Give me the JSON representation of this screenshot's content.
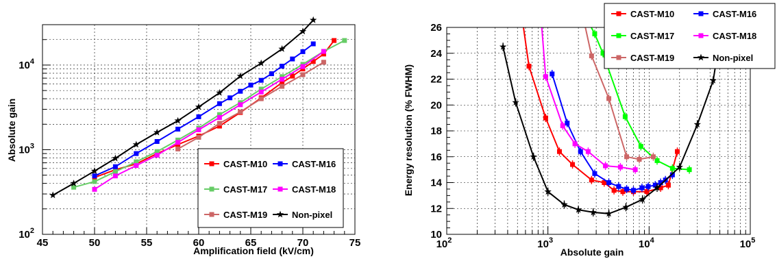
{
  "chart_data": [
    {
      "type": "line",
      "xlabel": "Amplification field (kV/cm)",
      "ylabel": "Absolute gain",
      "xlim": [
        45,
        75
      ],
      "ylim": [
        100,
        30000
      ],
      "yscale": "log",
      "grid": true,
      "legend_position": "bottom-right",
      "x_ticks": [
        "45",
        "50",
        "55",
        "60",
        "65",
        "70",
        "75"
      ],
      "y_ticks": [
        {
          "base": "10",
          "exp": "2",
          "value": 100
        },
        {
          "base": "10",
          "exp": "3",
          "value": 1000
        },
        {
          "base": "10",
          "exp": "4",
          "value": 10000
        }
      ],
      "series": [
        {
          "name": "CAST-M10",
          "color": "#ff0000",
          "marker": "square",
          "x": [
            50,
            52,
            54,
            56,
            58,
            60,
            62,
            64,
            66,
            68,
            69,
            70,
            71,
            72,
            73
          ],
          "y": [
            470,
            580,
            680,
            900,
            1150,
            1450,
            1900,
            2750,
            4100,
            6200,
            7400,
            9000,
            11000,
            13500,
            19500
          ]
        },
        {
          "name": "CAST-M16",
          "color": "#0000ff",
          "marker": "square",
          "x": [
            50,
            52,
            54,
            56,
            58,
            60,
            62,
            63,
            64,
            65,
            66,
            67,
            68,
            69,
            70,
            71
          ],
          "y": [
            490,
            630,
            900,
            1250,
            1750,
            2450,
            3500,
            4100,
            4900,
            5800,
            6600,
            7900,
            9700,
            11800,
            14400,
            17800
          ]
        },
        {
          "name": "CAST-M17",
          "color": "#66cc66",
          "marker": "square",
          "x": [
            48,
            50,
            52,
            54,
            56,
            58,
            60,
            62,
            64,
            66,
            68,
            70,
            72,
            74
          ],
          "y": [
            360,
            420,
            550,
            720,
            950,
            1300,
            1800,
            2600,
            3600,
            5200,
            7300,
            10200,
            14500,
            19500
          ]
        },
        {
          "name": "CAST-M18",
          "color": "#ff00ff",
          "marker": "square",
          "x": [
            50,
            52,
            54,
            56,
            58,
            60,
            62,
            64,
            66,
            68,
            70,
            72
          ],
          "y": [
            340,
            490,
            650,
            860,
            1220,
            1720,
            2400,
            3400,
            4800,
            6800,
            9600,
            14500
          ]
        },
        {
          "name": "CAST-M19",
          "color": "#cc6666",
          "marker": "square",
          "x": [
            58,
            60,
            62,
            64,
            66,
            68,
            70,
            72
          ],
          "y": [
            1020,
            1400,
            2050,
            2800,
            4000,
            5600,
            7700,
            10800
          ]
        },
        {
          "name": "Non-pixel",
          "color": "#000000",
          "marker": "star",
          "x": [
            46,
            48,
            50,
            52,
            54,
            56,
            58,
            60,
            62,
            64,
            66,
            68,
            70,
            71
          ],
          "y": [
            290,
            400,
            560,
            790,
            1150,
            1600,
            2200,
            3200,
            4700,
            7400,
            10500,
            15500,
            25000,
            34000
          ]
        }
      ]
    },
    {
      "type": "line",
      "xlabel": "Absolute gain",
      "ylabel": "Energy resolution (% FWHM)",
      "xlim": [
        100,
        100000
      ],
      "xscale": "log",
      "ylim": [
        10,
        26
      ],
      "grid": true,
      "legend_position": "top-right",
      "y_ticks": [
        "10",
        "12",
        "14",
        "16",
        "18",
        "20",
        "22",
        "24",
        "26"
      ],
      "x_ticks": [
        {
          "base": "10",
          "exp": "2",
          "value": 100
        },
        {
          "base": "10",
          "exp": "3",
          "value": 1000
        },
        {
          "base": "10",
          "exp": "4",
          "value": 10000
        },
        {
          "base": "10",
          "exp": "5",
          "value": 100000
        }
      ],
      "series": [
        {
          "name": "CAST-M10",
          "color": "#ff0000",
          "marker": "square",
          "x": [
            550,
            650,
            950,
            1300,
            1750,
            2700,
            3600,
            4500,
            5500,
            7000,
            9500,
            13000,
            15500,
            19000
          ],
          "y": [
            27,
            23.0,
            19.0,
            16.4,
            15.4,
            14.2,
            14.0,
            13.4,
            13.3,
            13.3,
            13.3,
            13.6,
            13.8,
            16.4
          ]
        },
        {
          "name": "CAST-M16",
          "color": "#0000ff",
          "marker": "square",
          "x": [
            1100,
            1550,
            2100,
            2900,
            4000,
            5000,
            6000,
            7000,
            8500,
            9800,
            11500,
            13000,
            14500,
            17000
          ],
          "y": [
            22.4,
            18.6,
            16.4,
            14.7,
            14.0,
            13.7,
            13.5,
            13.4,
            13.6,
            13.7,
            13.8,
            14.0,
            14.2,
            14.6
          ]
        },
        {
          "name": "CAST-M17",
          "color": "#00ff00",
          "marker": "square",
          "x": [
            2300,
            2900,
            3500,
            5800,
            8300,
            12000,
            17000,
            25000
          ],
          "y": [
            27,
            25.5,
            24.0,
            19.1,
            16.8,
            15.7,
            15.1,
            15.0
          ]
        },
        {
          "name": "CAST-M18",
          "color": "#ff00ff",
          "marker": "square",
          "x": [
            850,
            950,
            1400,
            1850,
            2500,
            3700,
            5200,
            7300
          ],
          "y": [
            27,
            22.2,
            18.4,
            17.0,
            16.4,
            15.3,
            15.2,
            15.0
          ]
        },
        {
          "name": "CAST-M19",
          "color": "#cc6666",
          "marker": "square",
          "x": [
            2200,
            2700,
            4000,
            6000,
            8000,
            11000
          ],
          "y": [
            27,
            23.8,
            20.5,
            16.0,
            15.8,
            16.0
          ]
        },
        {
          "name": "Non-pixel",
          "color": "#000000",
          "marker": "star",
          "x": [
            360,
            480,
            720,
            1000,
            1450,
            2000,
            2800,
            4000,
            5900,
            8600,
            12000,
            20000,
            30000,
            43000,
            52000
          ],
          "y": [
            24.5,
            20.2,
            16.0,
            13.3,
            12.3,
            11.9,
            11.7,
            11.6,
            12.1,
            12.7,
            13.6,
            15.2,
            18.5,
            21.9,
            26
          ]
        }
      ]
    }
  ]
}
